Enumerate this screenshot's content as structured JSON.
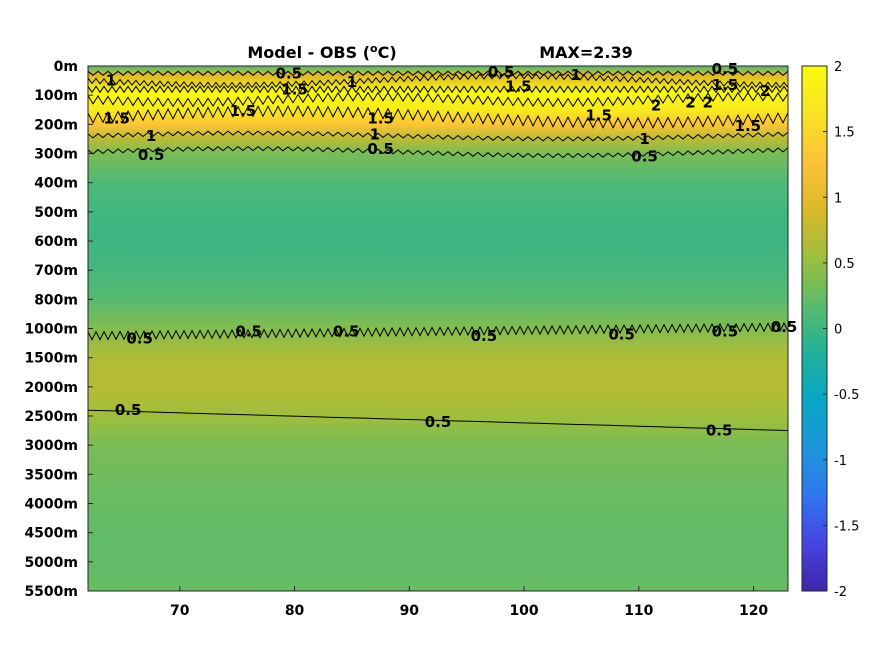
{
  "chart_data": {
    "type": "heatmap",
    "title_left": "Model - OBS (",
    "title_degree": "o",
    "title_unit": "C)",
    "title_right": "MAX=2.39",
    "xlim": [
      62,
      123
    ],
    "x_ticks": [
      70,
      80,
      90,
      100,
      110,
      120
    ],
    "y_ticks": [
      "0m",
      "100m",
      "200m",
      "300m",
      "400m",
      "500m",
      "600m",
      "700m",
      "800m",
      "1000m",
      "1500m",
      "2000m",
      "2500m",
      "3000m",
      "3500m",
      "4000m",
      "4500m",
      "5000m",
      "5500m"
    ],
    "clim": [
      -2,
      2
    ],
    "colorbar_ticks": [
      "2",
      "1.5",
      "1",
      "0.5",
      "0",
      "-0.5",
      "-1",
      "-1.5",
      "-2"
    ],
    "colormap": [
      "#3e26a8",
      "#4743e3",
      "#2f77f0",
      "#1d96db",
      "#09a6c6",
      "#21b19a",
      "#5bbb6c",
      "#9ebe3d",
      "#ddb82b",
      "#fdc238",
      "#f7e323",
      "#f9fb0e"
    ],
    "field_profile": [
      {
        "depth_index": 0.0,
        "value": 0.1
      },
      {
        "depth_index": 0.3,
        "value": 0.9
      },
      {
        "depth_index": 0.9,
        "value": 1.95
      },
      {
        "depth_index": 1.5,
        "value": 1.75
      },
      {
        "depth_index": 2.0,
        "value": 1.3
      },
      {
        "depth_index": 2.5,
        "value": 0.7
      },
      {
        "depth_index": 3.0,
        "value": 0.35
      },
      {
        "depth_index": 4.0,
        "value": 0.1
      },
      {
        "depth_index": 5.0,
        "value": 0.02
      },
      {
        "depth_index": 6.0,
        "value": 0.0
      },
      {
        "depth_index": 7.0,
        "value": 0.05
      },
      {
        "depth_index": 8.0,
        "value": 0.15
      },
      {
        "depth_index": 9.0,
        "value": 0.4
      },
      {
        "depth_index": 10.0,
        "value": 0.65
      },
      {
        "depth_index": 11.0,
        "value": 0.7
      },
      {
        "depth_index": 12.0,
        "value": 0.55
      },
      {
        "depth_index": 13.0,
        "value": 0.35
      },
      {
        "depth_index": 14.0,
        "value": 0.3
      },
      {
        "depth_index": 15.0,
        "value": 0.25
      },
      {
        "depth_index": 16.0,
        "value": 0.22
      },
      {
        "depth_index": 17.0,
        "value": 0.22
      },
      {
        "depth_index": 18.0,
        "value": 0.25
      }
    ],
    "contour_labels": [
      {
        "text": "0.5",
        "x": 79.5,
        "depth_index": 0.25
      },
      {
        "text": "1",
        "x": 64.0,
        "depth_index": 0.5
      },
      {
        "text": "1.5",
        "x": 80.0,
        "depth_index": 0.8
      },
      {
        "text": "1",
        "x": 85.0,
        "depth_index": 0.55
      },
      {
        "text": "0.5",
        "x": 98.0,
        "depth_index": 0.2
      },
      {
        "text": "1",
        "x": 104.5,
        "depth_index": 0.3
      },
      {
        "text": "1.5",
        "x": 99.5,
        "depth_index": 0.7
      },
      {
        "text": "0.5",
        "x": 117.5,
        "depth_index": 0.1
      },
      {
        "text": "1.5",
        "x": 117.5,
        "depth_index": 0.65
      },
      {
        "text": "2",
        "x": 121.0,
        "depth_index": 0.85
      },
      {
        "text": "2",
        "x": 111.5,
        "depth_index": 1.35
      },
      {
        "text": "2",
        "x": 114.5,
        "depth_index": 1.25
      },
      {
        "text": "2",
        "x": 116.0,
        "depth_index": 1.25
      },
      {
        "text": "1.5",
        "x": 64.5,
        "depth_index": 1.8
      },
      {
        "text": "1.5",
        "x": 75.5,
        "depth_index": 1.55
      },
      {
        "text": "1.5",
        "x": 87.5,
        "depth_index": 1.8
      },
      {
        "text": "1.5",
        "x": 106.5,
        "depth_index": 1.7
      },
      {
        "text": "1.5",
        "x": 119.5,
        "depth_index": 2.05
      },
      {
        "text": "1",
        "x": 67.5,
        "depth_index": 2.4
      },
      {
        "text": "1",
        "x": 87.0,
        "depth_index": 2.35
      },
      {
        "text": "1",
        "x": 110.5,
        "depth_index": 2.5
      },
      {
        "text": "0.5",
        "x": 67.5,
        "depth_index": 3.05
      },
      {
        "text": "0.5",
        "x": 87.5,
        "depth_index": 2.85
      },
      {
        "text": "0.5",
        "x": 110.5,
        "depth_index": 3.1
      },
      {
        "text": "0.5",
        "x": 66.5,
        "depth_index": 9.35
      },
      {
        "text": "0.5",
        "x": 76.0,
        "depth_index": 9.1
      },
      {
        "text": "0.5",
        "x": 84.5,
        "depth_index": 9.1
      },
      {
        "text": "0.5",
        "x": 96.5,
        "depth_index": 9.25
      },
      {
        "text": "0.5",
        "x": 108.5,
        "depth_index": 9.2
      },
      {
        "text": "0.5",
        "x": 117.5,
        "depth_index": 9.1
      },
      {
        "text": "0.5",
        "x": 123.0,
        "depth_index": 8.95
      },
      {
        "text": "0.5",
        "x": 65.5,
        "depth_index": 11.8
      },
      {
        "text": "0.5",
        "x": 92.5,
        "depth_index": 12.2
      },
      {
        "text": "0.5",
        "x": 117.0,
        "depth_index": 12.5
      }
    ]
  }
}
